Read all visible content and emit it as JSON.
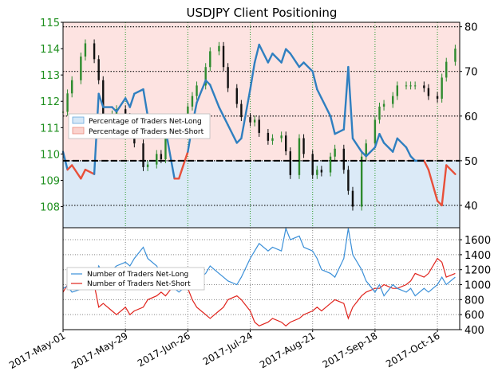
{
  "chart_data": [
    {
      "type": "line",
      "panel": "top",
      "title": "USDJPY Client Positioning",
      "price_axis": {
        "side": "left",
        "ylim": [
          107.2,
          115.0
        ],
        "ticks": [
          108,
          109,
          110,
          111,
          112,
          113,
          114,
          115
        ]
      },
      "percent_axis": {
        "side": "right",
        "ylim": [
          35,
          81
        ],
        "ticks": [
          40,
          50,
          60,
          70,
          80
        ]
      },
      "legend": [
        "Percentage of Traders Net-Long",
        "Percentage of Traders Net-Short"
      ],
      "legend_position": "center-left",
      "reference_line": {
        "axis": "percent",
        "value": 50,
        "style": "dashed"
      },
      "colors": {
        "price_axis": "#1e8f1e",
        "net_long_line": "#2f7fc0",
        "net_short_line": "#e8503a",
        "long_fill": "#dbeaf7",
        "short_fill": "#fde3e1",
        "candle_up": "#2e8b2e",
        "candle_down": "#111111"
      },
      "series": [
        {
          "name": "USDJPY price (close)",
          "x": [
            "2017-05-01",
            "2017-05-03",
            "2017-05-05",
            "2017-05-09",
            "2017-05-11",
            "2017-05-15",
            "2017-05-17",
            "2017-05-19",
            "2017-05-23",
            "2017-05-25",
            "2017-05-29",
            "2017-05-31",
            "2017-06-02",
            "2017-06-06",
            "2017-06-08",
            "2017-06-12",
            "2017-06-14",
            "2017-06-16",
            "2017-06-20",
            "2017-06-22",
            "2017-06-26",
            "2017-06-28",
            "2017-06-30",
            "2017-07-04",
            "2017-07-06",
            "2017-07-10",
            "2017-07-12",
            "2017-07-14",
            "2017-07-18",
            "2017-07-20",
            "2017-07-24",
            "2017-07-26",
            "2017-07-28",
            "2017-08-01",
            "2017-08-03",
            "2017-08-07",
            "2017-08-09",
            "2017-08-11",
            "2017-08-15",
            "2017-08-17",
            "2017-08-21",
            "2017-08-23",
            "2017-08-25",
            "2017-08-29",
            "2017-08-31",
            "2017-09-04",
            "2017-09-06",
            "2017-09-08",
            "2017-09-12",
            "2017-09-14",
            "2017-09-18",
            "2017-09-20",
            "2017-09-22",
            "2017-09-26",
            "2017-09-28",
            "2017-10-02",
            "2017-10-04",
            "2017-10-06",
            "2017-10-10",
            "2017-10-12",
            "2017-10-16",
            "2017-10-18",
            "2017-10-20",
            "2017-10-24"
          ],
          "values": [
            111.6,
            112.3,
            112.8,
            113.7,
            114.2,
            113.6,
            112.8,
            111.2,
            111.5,
            111.7,
            111.4,
            110.8,
            110.4,
            109.5,
            109.6,
            110.0,
            109.8,
            110.8,
            111.3,
            111.2,
            111.8,
            112.2,
            112.6,
            113.3,
            113.9,
            114.1,
            113.3,
            112.5,
            111.9,
            111.4,
            111.2,
            111.3,
            110.8,
            110.5,
            110.6,
            110.7,
            110.1,
            109.2,
            110.6,
            110.0,
            109.2,
            109.4,
            109.3,
            109.9,
            110.2,
            109.4,
            108.6,
            108.0,
            109.9,
            110.4,
            111.3,
            111.8,
            111.9,
            112.2,
            112.6,
            112.6,
            112.6,
            112.6,
            112.5,
            112.2,
            112.1,
            112.9,
            113.5,
            114.0
          ]
        },
        {
          "name": "Percentage of Traders Net-Long",
          "x": [
            "2017-05-01",
            "2017-05-03",
            "2017-05-05",
            "2017-05-09",
            "2017-05-11",
            "2017-05-15",
            "2017-05-17",
            "2017-05-19",
            "2017-05-23",
            "2017-05-25",
            "2017-05-29",
            "2017-05-31",
            "2017-06-02",
            "2017-06-06",
            "2017-06-08",
            "2017-06-12",
            "2017-06-14",
            "2017-06-16",
            "2017-06-20",
            "2017-06-22",
            "2017-06-26",
            "2017-06-28",
            "2017-06-30",
            "2017-07-04",
            "2017-07-06",
            "2017-07-10",
            "2017-07-12",
            "2017-07-14",
            "2017-07-18",
            "2017-07-20",
            "2017-07-24",
            "2017-07-26",
            "2017-07-28",
            "2017-08-01",
            "2017-08-03",
            "2017-08-07",
            "2017-08-09",
            "2017-08-11",
            "2017-08-15",
            "2017-08-17",
            "2017-08-21",
            "2017-08-23",
            "2017-08-25",
            "2017-08-29",
            "2017-08-31",
            "2017-09-04",
            "2017-09-06",
            "2017-09-08",
            "2017-09-12",
            "2017-09-14",
            "2017-09-18",
            "2017-09-20",
            "2017-09-22",
            "2017-09-26",
            "2017-09-28",
            "2017-10-02",
            "2017-10-04",
            "2017-10-06",
            "2017-10-10",
            "2017-10-12",
            "2017-10-16",
            "2017-10-18",
            "2017-10-20",
            "2017-10-24"
          ],
          "values": [
            52,
            48,
            49,
            46,
            48,
            47,
            65,
            62,
            62,
            61,
            64,
            62,
            65,
            66,
            60,
            58,
            56,
            57,
            46,
            46,
            52,
            58,
            63,
            68,
            67,
            62,
            60,
            58,
            54,
            55,
            66,
            72,
            76,
            72,
            74,
            72,
            75,
            74,
            71,
            72,
            70,
            66,
            64,
            60,
            56,
            57,
            71,
            55,
            52,
            51,
            53,
            56,
            54,
            52,
            55,
            53,
            51,
            50,
            50,
            48,
            41,
            40,
            49,
            47
          ]
        },
        {
          "name": "Number of Traders Net-Long",
          "x": [
            "2017-05-01",
            "2017-05-03",
            "2017-05-05",
            "2017-05-09",
            "2017-05-11",
            "2017-05-15",
            "2017-05-17",
            "2017-05-19",
            "2017-05-23",
            "2017-05-25",
            "2017-05-29",
            "2017-05-31",
            "2017-06-02",
            "2017-06-06",
            "2017-06-08",
            "2017-06-12",
            "2017-06-14",
            "2017-06-16",
            "2017-06-20",
            "2017-06-22",
            "2017-06-26",
            "2017-06-28",
            "2017-06-30",
            "2017-07-04",
            "2017-07-06",
            "2017-07-10",
            "2017-07-12",
            "2017-07-14",
            "2017-07-18",
            "2017-07-20",
            "2017-07-24",
            "2017-07-26",
            "2017-07-28",
            "2017-08-01",
            "2017-08-03",
            "2017-08-07",
            "2017-08-09",
            "2017-08-11",
            "2017-08-15",
            "2017-08-17",
            "2017-08-21",
            "2017-08-23",
            "2017-08-25",
            "2017-08-29",
            "2017-08-31",
            "2017-09-04",
            "2017-09-06",
            "2017-09-08",
            "2017-09-12",
            "2017-09-14",
            "2017-09-18",
            "2017-09-20",
            "2017-09-22",
            "2017-09-26",
            "2017-09-28",
            "2017-10-02",
            "2017-10-04",
            "2017-10-06",
            "2017-10-10",
            "2017-10-12",
            "2017-10-16",
            "2017-10-18",
            "2017-10-20",
            "2017-10-24"
          ],
          "values": [
            950,
            980,
            900,
            940,
            1000,
            1050,
            1250,
            1150,
            1200,
            1250,
            1300,
            1250,
            1350,
            1500,
            1350,
            1250,
            1150,
            1100,
            950,
            900,
            1000,
            1050,
            1050,
            1150,
            1250,
            1150,
            1100,
            1050,
            1000,
            1100,
            1350,
            1450,
            1550,
            1450,
            1500,
            1450,
            1750,
            1600,
            1650,
            1500,
            1450,
            1350,
            1200,
            1150,
            1100,
            1350,
            1750,
            1400,
            1200,
            1050,
            900,
            1000,
            850,
            1000,
            950,
            900,
            950,
            850,
            950,
            900,
            1000,
            1100,
            1000,
            1100
          ]
        },
        {
          "name": "Number of Traders Net-Short",
          "x": [
            "2017-05-01",
            "2017-05-03",
            "2017-05-05",
            "2017-05-09",
            "2017-05-11",
            "2017-05-15",
            "2017-05-17",
            "2017-05-19",
            "2017-05-23",
            "2017-05-25",
            "2017-05-29",
            "2017-05-31",
            "2017-06-02",
            "2017-06-06",
            "2017-06-08",
            "2017-06-12",
            "2017-06-14",
            "2017-06-16",
            "2017-06-20",
            "2017-06-22",
            "2017-06-26",
            "2017-06-28",
            "2017-06-30",
            "2017-07-04",
            "2017-07-06",
            "2017-07-10",
            "2017-07-12",
            "2017-07-14",
            "2017-07-18",
            "2017-07-20",
            "2017-07-24",
            "2017-07-26",
            "2017-07-28",
            "2017-08-01",
            "2017-08-03",
            "2017-08-07",
            "2017-08-09",
            "2017-08-11",
            "2017-08-15",
            "2017-08-17",
            "2017-08-21",
            "2017-08-23",
            "2017-08-25",
            "2017-08-29",
            "2017-08-31",
            "2017-09-04",
            "2017-09-06",
            "2017-09-08",
            "2017-09-12",
            "2017-09-14",
            "2017-09-18",
            "2017-09-20",
            "2017-09-22",
            "2017-09-26",
            "2017-09-28",
            "2017-10-02",
            "2017-10-04",
            "2017-10-06",
            "2017-10-10",
            "2017-10-12",
            "2017-10-16",
            "2017-10-18",
            "2017-10-20",
            "2017-10-24"
          ],
          "values": [
            900,
            1000,
            1100,
            950,
            1050,
            1000,
            700,
            750,
            650,
            600,
            700,
            600,
            650,
            700,
            800,
            850,
            900,
            850,
            1000,
            1050,
            950,
            800,
            700,
            600,
            550,
            650,
            700,
            800,
            850,
            800,
            650,
            500,
            450,
            500,
            550,
            500,
            450,
            500,
            550,
            600,
            650,
            700,
            650,
            750,
            800,
            750,
            550,
            700,
            850,
            900,
            950,
            950,
            1000,
            950,
            950,
            1000,
            1050,
            1150,
            1100,
            1150,
            1350,
            1300,
            1100,
            1150
          ]
        }
      ]
    },
    {
      "type": "line",
      "panel": "bottom",
      "yaxis": {
        "side": "right",
        "ylim": [
          400,
          1760
        ],
        "ticks": [
          400,
          600,
          800,
          1000,
          1200,
          1400,
          1600
        ]
      },
      "xaxis": {
        "tick_labels": [
          "2017-May-01",
          "2017-May-29",
          "2017-Jun-26",
          "2017-Jul-24",
          "2017-Aug-21",
          "2017-Sep-18",
          "2017-Oct-16"
        ],
        "tick_dates": [
          "2017-05-01",
          "2017-05-29",
          "2017-06-26",
          "2017-07-24",
          "2017-08-21",
          "2017-09-18",
          "2017-10-16"
        ],
        "xlim": [
          "2017-05-01",
          "2017-10-26"
        ]
      },
      "legend": [
        "Number of Traders Net-Long",
        "Number of Traders Net-Short"
      ],
      "legend_position": "upper-left",
      "colors": {
        "net_long": "#3a8fd8",
        "net_short": "#e0231c"
      }
    }
  ]
}
